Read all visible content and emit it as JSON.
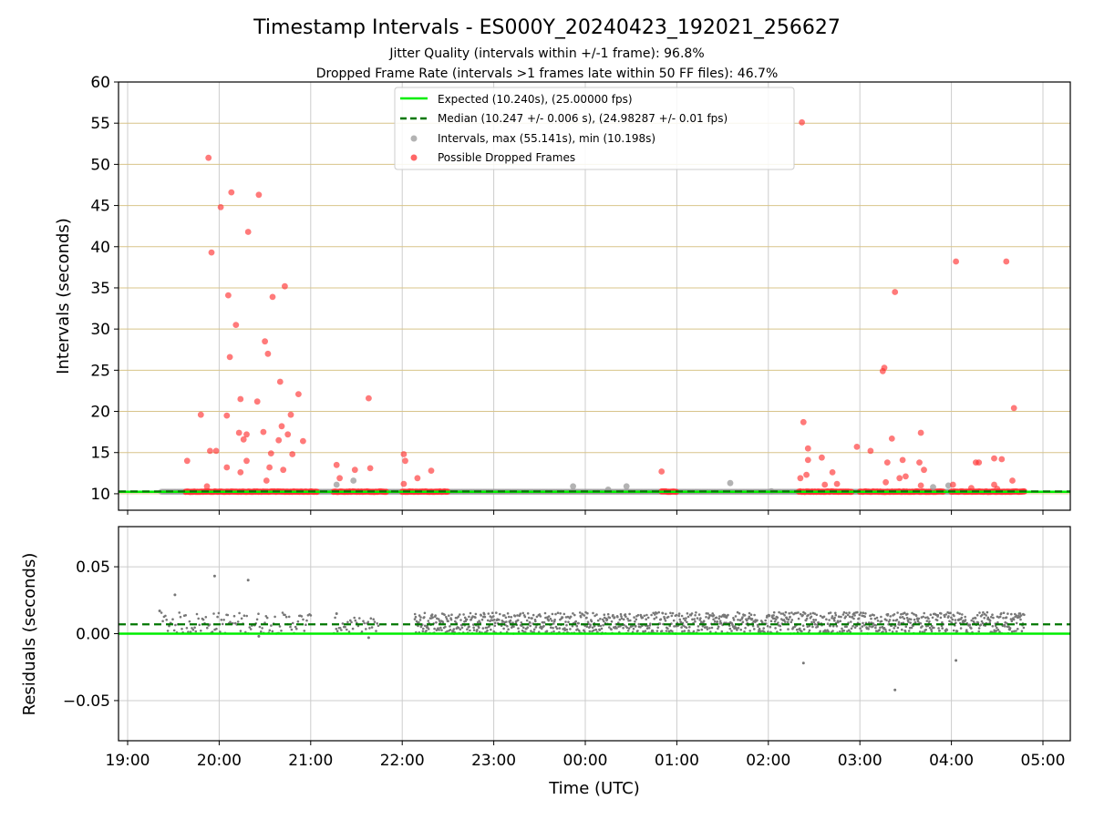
{
  "chart_data": {
    "type": "scatter",
    "title": "Timestamp Intervals - ES000Y_20240423_192021_256627",
    "subtitle_lines": [
      "Jitter Quality (intervals within +/-1 frame): 96.8%",
      "Dropped Frame Rate (intervals >1 frames late within 50 FF files): 46.7%"
    ],
    "xlabel": "Time (UTC)",
    "x_ticks": [
      "19:00",
      "20:00",
      "21:00",
      "22:00",
      "23:00",
      "00:00",
      "01:00",
      "02:00",
      "03:00",
      "04:00",
      "05:00"
    ],
    "colors": {
      "expected": "#00ee00",
      "median": "#007700",
      "intervals": "#999999",
      "dropped": "#ff3333",
      "residuals": "#777777",
      "ygrid": "#d8c48a",
      "xgrid": "#cccccc"
    },
    "panels": {
      "intervals": {
        "ylabel": "Intervals (seconds)",
        "ylim": [
          8,
          60
        ],
        "y_ticks": [
          "10",
          "15",
          "20",
          "25",
          "30",
          "35",
          "40",
          "45",
          "50",
          "55",
          "60"
        ],
        "expected": 10.24,
        "median": 10.247,
        "legend": [
          "Expected (10.240s), (25.00000 fps)",
          "Median (10.247 +/- 0.006 s), (24.98287 +/- 0.01 fps)",
          "Intervals, max (55.141s), min (10.198s)",
          "Possible Dropped Frames"
        ],
        "baseline_points": {
          "x_range": [
            "19:22",
            "04:48"
          ],
          "y": 10.25
        },
        "dropped_runs": [
          [
            "19:38",
            "21:05"
          ],
          [
            "21:15",
            "21:50"
          ],
          [
            "22:00",
            "22:30"
          ],
          [
            "00:50",
            "01:00"
          ],
          [
            "02:20",
            "02:55"
          ],
          [
            "03:00",
            "03:55"
          ],
          [
            "04:00",
            "04:48"
          ]
        ],
        "interval_points": [
          {
            "time": "21:17",
            "value": 11.1
          },
          {
            "time": "21:28",
            "value": 11.6
          },
          {
            "time": "23:52",
            "value": 10.9
          },
          {
            "time": "00:15",
            "value": 10.5
          },
          {
            "time": "00:27",
            "value": 10.9
          },
          {
            "time": "01:35",
            "value": 11.3
          },
          {
            "time": "02:02",
            "value": 10.3
          },
          {
            "time": "03:48",
            "value": 10.8
          },
          {
            "time": "03:58",
            "value": 11.0
          }
        ],
        "dropped_points": [
          {
            "time": "19:39",
            "value": 14.0
          },
          {
            "time": "19:48",
            "value": 19.6
          },
          {
            "time": "19:52",
            "value": 10.9
          },
          {
            "time": "19:53",
            "value": 50.8
          },
          {
            "time": "19:54",
            "value": 15.2
          },
          {
            "time": "19:55",
            "value": 39.3
          },
          {
            "time": "19:58",
            "value": 15.2
          },
          {
            "time": "20:01",
            "value": 44.8
          },
          {
            "time": "20:05",
            "value": 19.5
          },
          {
            "time": "20:05",
            "value": 13.2
          },
          {
            "time": "20:06",
            "value": 34.1
          },
          {
            "time": "20:07",
            "value": 26.6
          },
          {
            "time": "20:08",
            "value": 46.6
          },
          {
            "time": "20:11",
            "value": 30.5
          },
          {
            "time": "20:13",
            "value": 17.4
          },
          {
            "time": "20:14",
            "value": 12.6
          },
          {
            "time": "20:14",
            "value": 21.5
          },
          {
            "time": "20:16",
            "value": 16.6
          },
          {
            "time": "20:18",
            "value": 17.2
          },
          {
            "time": "20:18",
            "value": 14.0
          },
          {
            "time": "20:19",
            "value": 41.8
          },
          {
            "time": "20:25",
            "value": 21.2
          },
          {
            "time": "20:26",
            "value": 46.3
          },
          {
            "time": "20:29",
            "value": 17.5
          },
          {
            "time": "20:30",
            "value": 28.5
          },
          {
            "time": "20:31",
            "value": 11.6
          },
          {
            "time": "20:32",
            "value": 27.0
          },
          {
            "time": "20:33",
            "value": 13.2
          },
          {
            "time": "20:34",
            "value": 14.9
          },
          {
            "time": "20:35",
            "value": 33.9
          },
          {
            "time": "20:39",
            "value": 16.5
          },
          {
            "time": "20:40",
            "value": 23.6
          },
          {
            "time": "20:41",
            "value": 18.2
          },
          {
            "time": "20:42",
            "value": 12.9
          },
          {
            "time": "20:43",
            "value": 35.2
          },
          {
            "time": "20:45",
            "value": 17.2
          },
          {
            "time": "20:47",
            "value": 19.6
          },
          {
            "time": "20:48",
            "value": 14.8
          },
          {
            "time": "20:52",
            "value": 22.1
          },
          {
            "time": "20:55",
            "value": 16.4
          },
          {
            "time": "21:17",
            "value": 13.5
          },
          {
            "time": "21:19",
            "value": 11.9
          },
          {
            "time": "21:29",
            "value": 12.9
          },
          {
            "time": "21:38",
            "value": 21.6
          },
          {
            "time": "21:39",
            "value": 13.1
          },
          {
            "time": "22:01",
            "value": 14.8
          },
          {
            "time": "22:01",
            "value": 11.2
          },
          {
            "time": "22:02",
            "value": 14.0
          },
          {
            "time": "22:10",
            "value": 11.9
          },
          {
            "time": "22:19",
            "value": 12.8
          },
          {
            "time": "00:50",
            "value": 12.7
          },
          {
            "time": "02:22",
            "value": 55.1
          },
          {
            "time": "02:21",
            "value": 11.9
          },
          {
            "time": "02:23",
            "value": 18.7
          },
          {
            "time": "02:25",
            "value": 12.3
          },
          {
            "time": "02:26",
            "value": 15.5
          },
          {
            "time": "02:26",
            "value": 14.1
          },
          {
            "time": "02:35",
            "value": 14.4
          },
          {
            "time": "02:37",
            "value": 11.1
          },
          {
            "time": "02:42",
            "value": 12.6
          },
          {
            "time": "02:45",
            "value": 11.2
          },
          {
            "time": "02:58",
            "value": 15.7
          },
          {
            "time": "03:07",
            "value": 15.2
          },
          {
            "time": "03:15",
            "value": 24.9
          },
          {
            "time": "03:16",
            "value": 25.3
          },
          {
            "time": "03:17",
            "value": 11.4
          },
          {
            "time": "03:18",
            "value": 13.8
          },
          {
            "time": "03:21",
            "value": 16.7
          },
          {
            "time": "03:23",
            "value": 34.5
          },
          {
            "time": "03:26",
            "value": 11.9
          },
          {
            "time": "03:28",
            "value": 14.1
          },
          {
            "time": "03:30",
            "value": 12.1
          },
          {
            "time": "03:39",
            "value": 13.8
          },
          {
            "time": "03:40",
            "value": 11.0
          },
          {
            "time": "03:40",
            "value": 17.4
          },
          {
            "time": "03:42",
            "value": 12.9
          },
          {
            "time": "04:01",
            "value": 11.1
          },
          {
            "time": "04:03",
            "value": 38.2
          },
          {
            "time": "04:13",
            "value": 10.7
          },
          {
            "time": "04:16",
            "value": 13.8
          },
          {
            "time": "04:18",
            "value": 13.8
          },
          {
            "time": "04:28",
            "value": 14.3
          },
          {
            "time": "04:28",
            "value": 11.1
          },
          {
            "time": "04:30",
            "value": 10.6
          },
          {
            "time": "04:33",
            "value": 14.2
          },
          {
            "time": "04:36",
            "value": 38.2
          },
          {
            "time": "04:40",
            "value": 11.6
          },
          {
            "time": "04:41",
            "value": 20.4
          }
        ]
      },
      "residuals": {
        "ylabel": "Residuals (seconds)",
        "ylim": [
          -0.08,
          0.08
        ],
        "y_ticks": [
          {
            "value": 0.05,
            "label": "0.05"
          },
          {
            "value": 0.0,
            "label": "0.00"
          },
          {
            "value": -0.05,
            "label": "−0.05"
          }
        ],
        "expected": 0.0,
        "median": 0.007,
        "bands": [
          {
            "x_range": [
              "19:22",
              "21:00"
            ],
            "y_range": [
              0.0,
              0.016
            ]
          },
          {
            "x_range": [
              "21:15",
              "21:45"
            ],
            "y_range": [
              0.0,
              0.012
            ]
          },
          {
            "x_range": [
              "22:08",
              "04:48"
            ],
            "y_range": [
              0.0,
              0.016
            ]
          }
        ],
        "outliers": [
          {
            "time": "19:31",
            "value": 0.029
          },
          {
            "time": "19:57",
            "value": 0.043
          },
          {
            "time": "20:19",
            "value": 0.04
          },
          {
            "time": "20:26",
            "value": -0.002
          },
          {
            "time": "21:38",
            "value": -0.003
          },
          {
            "time": "02:23",
            "value": -0.022
          },
          {
            "time": "03:23",
            "value": -0.042
          },
          {
            "time": "04:03",
            "value": -0.02
          },
          {
            "time": "19:21",
            "value": 0.017
          },
          {
            "time": "21:17",
            "value": 0.015
          }
        ]
      }
    }
  }
}
